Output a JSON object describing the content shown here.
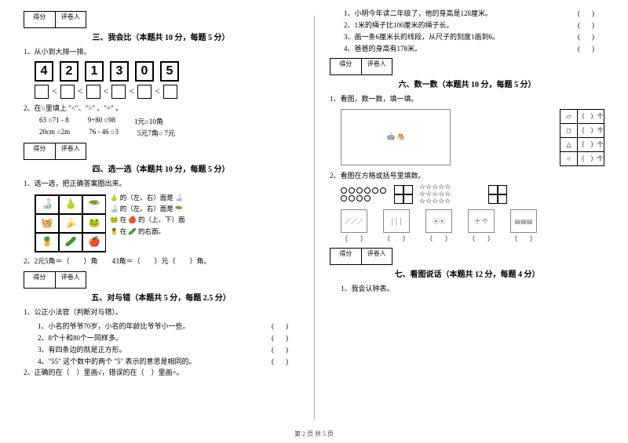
{
  "footer": "第 2 页 共 5 页",
  "score_labels": {
    "score": "得分",
    "reviewer": "评卷人"
  },
  "left": {
    "sec3": {
      "title": "三、我会比（本题共 10 分，每题 5 分）",
      "q1": "1、从小到大排一排。",
      "cards": [
        "4",
        "2",
        "1",
        "3",
        "0",
        "5"
      ],
      "lt": "<",
      "q2": "2、在○里填上 \"<\"、\">\" 、\"=\" 。",
      "rows": [
        [
          "63 ○71 - 8",
          "9+80 ○98",
          "1元○10角"
        ],
        [
          "20cm ○2m",
          "76 - 46 ○3",
          "5元7角○ 7元"
        ]
      ]
    },
    "sec4": {
      "title": "四、选一选（本题共 10 分，每题 5 分）",
      "q1": "1、选一选，把正确答案圈出来。",
      "grid_side": [
        "🍐 的（左、右）面是 🍶",
        "🍶 的（左、右）面是 🥗",
        "🐸 在 🍎 的（上、下）面",
        "🍍 在 🥒 的右面。"
      ],
      "q2": "2、2元5角＝（　　）角　　43角＝（　　）元（　　）角。"
    },
    "sec5": {
      "title": "五、对与错（本题共 5 分，每题 2.5 分）",
      "q1": "1、公正小法官（判断对与错）。",
      "items": [
        "1、小名的爷爷70岁，小名的年龄比爷爷小一些。",
        "2、8个十和80个一同样多。",
        "3、有四条边的就是正方形。",
        "4、\"55\" 这个数中的两个 \"5\" 表示的意思是相同的。"
      ],
      "q2": "2、正确的在（　）里画√，错误的在（　）里画×。"
    }
  },
  "right": {
    "top_items": [
      "1、小明今年读二年级了，他的身高是128厘米。",
      "2、1米的绳子比100厘米的绳子长。",
      "3、画一条6厘米长的线段，从尺子的刻度1画到6。",
      "4、爸爸的身高有178米。"
    ],
    "sec6": {
      "title": "六、数一数（本题共 10 分，每题 5 分）",
      "q1": "1、看图，数一数，填一填。",
      "shape_rows": [
        {
          "icon": "▱",
          "label": "（　）个"
        },
        {
          "icon": "◻",
          "label": "（　）个"
        },
        {
          "icon": "△",
          "label": "（　）个"
        },
        {
          "icon": "○",
          "label": "（　）个"
        }
      ],
      "q2": "2、看图在方格或括号里填数。",
      "blank": "（　　）"
    },
    "sec7": {
      "title": "七、看图说话（本题共 12 分，每题 4 分）",
      "q1": "1、我会认钟表。"
    }
  }
}
